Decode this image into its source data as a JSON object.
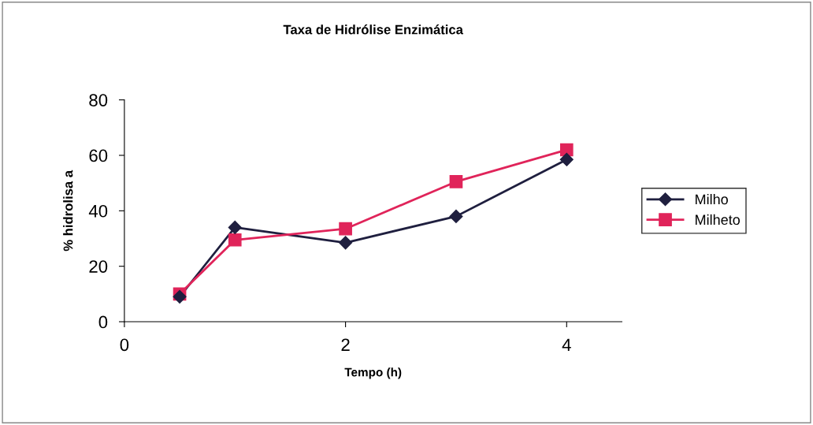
{
  "chart_data": {
    "type": "line",
    "title": "Taxa de Hidrólise Enzimática",
    "xlabel": "Tempo (h)",
    "ylabel": "% hidrolisa a",
    "x": [
      0.5,
      1,
      2,
      3,
      4
    ],
    "series": [
      {
        "name": "Milho",
        "color": "#1f1f3f",
        "marker": "diamond",
        "values": [
          9,
          34,
          28.5,
          38,
          58.5
        ]
      },
      {
        "name": "Milheto",
        "color": "#e0245a",
        "marker": "square",
        "values": [
          10,
          29.5,
          33.5,
          50.5,
          62
        ]
      }
    ],
    "xlim": [
      0,
      4.5
    ],
    "xticks": [
      0,
      2,
      4
    ],
    "ylim": [
      0,
      80
    ],
    "yticks": [
      0,
      20,
      40,
      60,
      80
    ],
    "grid": false,
    "legend": "right",
    "line_style": "solid"
  }
}
